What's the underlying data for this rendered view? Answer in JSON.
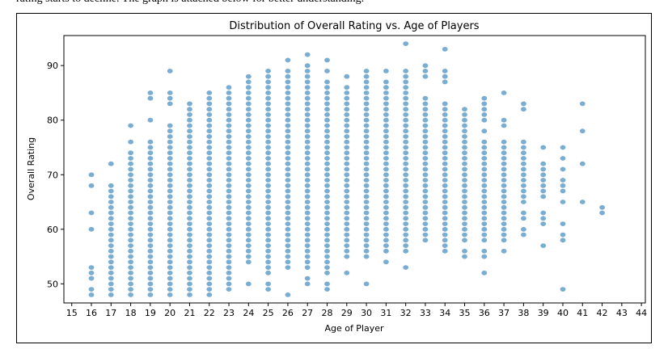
{
  "header_text": "rating starts to decline. The graph is attached below for better understanding.",
  "chart_data": {
    "type": "scatter",
    "title": "Distribution of Overall Rating vs. Age of Players",
    "xlabel": "Age of Player",
    "ylabel": "Overall Rating",
    "xlim": [
      14.6,
      44.2
    ],
    "ylim": [
      46.5,
      95.5
    ],
    "xticks": [
      15,
      16,
      17,
      18,
      19,
      20,
      21,
      22,
      23,
      24,
      25,
      26,
      27,
      28,
      29,
      30,
      31,
      32,
      33,
      34,
      35,
      36,
      37,
      38,
      39,
      40,
      41,
      42,
      43,
      44
    ],
    "yticks": [
      50,
      60,
      70,
      80,
      90
    ],
    "grid": false,
    "marker_color": "#1f77b4",
    "columns": [
      {
        "age": 16,
        "ratings": [
          48,
          49,
          51,
          52,
          53,
          60,
          63,
          68,
          70
        ]
      },
      {
        "age": 17,
        "ratings": [
          48,
          49,
          50,
          51,
          52,
          53,
          54,
          55,
          56,
          57,
          58,
          59,
          60,
          61,
          62,
          63,
          64,
          65,
          66,
          67,
          68,
          72
        ]
      },
      {
        "age": 18,
        "ratings": [
          48,
          49,
          50,
          51,
          52,
          53,
          54,
          55,
          56,
          57,
          58,
          59,
          60,
          61,
          62,
          63,
          64,
          65,
          66,
          67,
          68,
          69,
          70,
          71,
          72,
          73,
          74,
          76,
          79
        ]
      },
      {
        "age": 19,
        "ratings": [
          48,
          49,
          50,
          51,
          52,
          53,
          54,
          55,
          56,
          57,
          58,
          59,
          60,
          61,
          62,
          63,
          64,
          65,
          66,
          67,
          68,
          69,
          70,
          71,
          72,
          73,
          74,
          75,
          76,
          80,
          84,
          85
        ]
      },
      {
        "age": 20,
        "ratings": [
          48,
          49,
          50,
          51,
          52,
          53,
          54,
          55,
          56,
          57,
          58,
          59,
          60,
          61,
          62,
          63,
          64,
          65,
          66,
          67,
          68,
          69,
          70,
          71,
          72,
          73,
          74,
          75,
          76,
          77,
          78,
          79,
          83,
          84,
          85,
          89
        ]
      },
      {
        "age": 21,
        "ratings": [
          48,
          49,
          50,
          51,
          52,
          53,
          54,
          55,
          56,
          57,
          58,
          59,
          60,
          61,
          62,
          63,
          64,
          65,
          66,
          67,
          68,
          69,
          70,
          71,
          72,
          73,
          74,
          75,
          76,
          77,
          78,
          79,
          80,
          81,
          82,
          83
        ]
      },
      {
        "age": 22,
        "ratings": [
          48,
          49,
          50,
          51,
          52,
          53,
          54,
          55,
          56,
          57,
          58,
          59,
          60,
          61,
          62,
          63,
          64,
          65,
          66,
          67,
          68,
          69,
          70,
          71,
          72,
          73,
          74,
          75,
          76,
          77,
          78,
          79,
          80,
          81,
          82,
          83,
          84,
          85
        ]
      },
      {
        "age": 23,
        "ratings": [
          49,
          50,
          51,
          52,
          53,
          54,
          55,
          56,
          57,
          58,
          59,
          60,
          61,
          62,
          63,
          64,
          65,
          66,
          67,
          68,
          69,
          70,
          71,
          72,
          73,
          74,
          75,
          76,
          77,
          78,
          79,
          80,
          81,
          82,
          83,
          84,
          85,
          86
        ]
      },
      {
        "age": 24,
        "ratings": [
          50,
          54,
          55,
          56,
          57,
          58,
          59,
          60,
          61,
          62,
          63,
          64,
          65,
          66,
          67,
          68,
          69,
          70,
          71,
          72,
          73,
          74,
          75,
          76,
          77,
          78,
          79,
          80,
          81,
          82,
          83,
          84,
          85,
          86,
          87,
          88
        ]
      },
      {
        "age": 25,
        "ratings": [
          49,
          50,
          52,
          53,
          54,
          55,
          56,
          57,
          58,
          59,
          60,
          61,
          62,
          63,
          64,
          65,
          66,
          67,
          68,
          69,
          70,
          71,
          72,
          73,
          74,
          75,
          76,
          77,
          78,
          79,
          80,
          81,
          82,
          83,
          84,
          85,
          86,
          87,
          88,
          89
        ]
      },
      {
        "age": 26,
        "ratings": [
          48,
          53,
          54,
          55,
          56,
          57,
          58,
          59,
          60,
          61,
          62,
          63,
          64,
          65,
          66,
          67,
          68,
          69,
          70,
          71,
          72,
          73,
          74,
          75,
          76,
          77,
          78,
          79,
          80,
          81,
          82,
          83,
          84,
          85,
          86,
          87,
          88,
          89,
          91
        ]
      },
      {
        "age": 27,
        "ratings": [
          50,
          51,
          53,
          54,
          55,
          56,
          57,
          58,
          59,
          60,
          61,
          62,
          63,
          64,
          65,
          66,
          67,
          68,
          69,
          70,
          71,
          72,
          73,
          74,
          75,
          76,
          77,
          78,
          79,
          80,
          81,
          82,
          83,
          84,
          85,
          86,
          87,
          88,
          89,
          90,
          92
        ]
      },
      {
        "age": 28,
        "ratings": [
          49,
          50,
          52,
          53,
          54,
          55,
          56,
          57,
          58,
          59,
          60,
          61,
          62,
          63,
          64,
          65,
          66,
          67,
          68,
          69,
          70,
          71,
          72,
          73,
          74,
          75,
          76,
          77,
          78,
          79,
          80,
          81,
          82,
          83,
          84,
          85,
          86,
          87,
          89,
          91
        ]
      },
      {
        "age": 29,
        "ratings": [
          52,
          55,
          56,
          57,
          58,
          59,
          60,
          61,
          62,
          63,
          64,
          65,
          66,
          67,
          68,
          69,
          70,
          71,
          72,
          73,
          74,
          75,
          76,
          77,
          78,
          79,
          80,
          81,
          82,
          83,
          84,
          85,
          86,
          88
        ]
      },
      {
        "age": 30,
        "ratings": [
          50,
          55,
          56,
          57,
          58,
          59,
          60,
          61,
          62,
          63,
          64,
          65,
          66,
          67,
          68,
          69,
          70,
          71,
          72,
          73,
          74,
          75,
          76,
          77,
          78,
          79,
          80,
          81,
          82,
          83,
          84,
          85,
          86,
          87,
          88,
          89
        ]
      },
      {
        "age": 31,
        "ratings": [
          54,
          56,
          57,
          58,
          59,
          60,
          61,
          62,
          63,
          64,
          65,
          66,
          67,
          68,
          69,
          70,
          71,
          72,
          73,
          74,
          75,
          76,
          77,
          78,
          79,
          80,
          81,
          82,
          83,
          84,
          85,
          86,
          87,
          89
        ]
      },
      {
        "age": 32,
        "ratings": [
          53,
          56,
          57,
          58,
          59,
          60,
          61,
          62,
          63,
          64,
          65,
          66,
          67,
          68,
          69,
          70,
          71,
          72,
          73,
          74,
          75,
          76,
          77,
          78,
          79,
          80,
          81,
          82,
          83,
          84,
          85,
          86,
          87,
          88,
          89,
          94
        ]
      },
      {
        "age": 33,
        "ratings": [
          58,
          59,
          60,
          61,
          62,
          63,
          64,
          65,
          66,
          67,
          68,
          69,
          70,
          71,
          72,
          73,
          74,
          75,
          76,
          77,
          78,
          79,
          80,
          81,
          82,
          83,
          84,
          88,
          89,
          90
        ]
      },
      {
        "age": 34,
        "ratings": [
          56,
          57,
          58,
          59,
          60,
          61,
          62,
          63,
          64,
          65,
          66,
          67,
          68,
          69,
          70,
          71,
          72,
          73,
          74,
          75,
          76,
          77,
          78,
          79,
          80,
          81,
          82,
          83,
          87,
          88,
          89,
          93
        ]
      },
      {
        "age": 35,
        "ratings": [
          55,
          56,
          58,
          59,
          60,
          61,
          62,
          63,
          64,
          65,
          66,
          67,
          68,
          69,
          70,
          71,
          72,
          73,
          74,
          75,
          76,
          77,
          78,
          79,
          80,
          81,
          82
        ]
      },
      {
        "age": 36,
        "ratings": [
          52,
          55,
          56,
          58,
          59,
          60,
          61,
          62,
          63,
          64,
          65,
          66,
          67,
          68,
          69,
          70,
          71,
          72,
          73,
          74,
          75,
          76,
          78,
          80,
          81,
          82,
          83,
          84
        ]
      },
      {
        "age": 37,
        "ratings": [
          56,
          58,
          59,
          60,
          61,
          62,
          63,
          64,
          65,
          66,
          67,
          68,
          69,
          70,
          71,
          72,
          73,
          74,
          75,
          76,
          79,
          80,
          85
        ]
      },
      {
        "age": 38,
        "ratings": [
          59,
          60,
          62,
          63,
          65,
          66,
          67,
          68,
          69,
          70,
          71,
          72,
          73,
          74,
          75,
          76,
          82,
          83
        ]
      },
      {
        "age": 39,
        "ratings": [
          57,
          61,
          62,
          63,
          66,
          67,
          68,
          69,
          70,
          71,
          72,
          75
        ]
      },
      {
        "age": 40,
        "ratings": [
          49,
          58,
          59,
          61,
          65,
          67,
          68,
          69,
          71,
          73,
          75
        ]
      },
      {
        "age": 41,
        "ratings": [
          65,
          72,
          78,
          83
        ]
      },
      {
        "age": 42,
        "ratings": [
          63,
          64
        ]
      }
    ]
  }
}
